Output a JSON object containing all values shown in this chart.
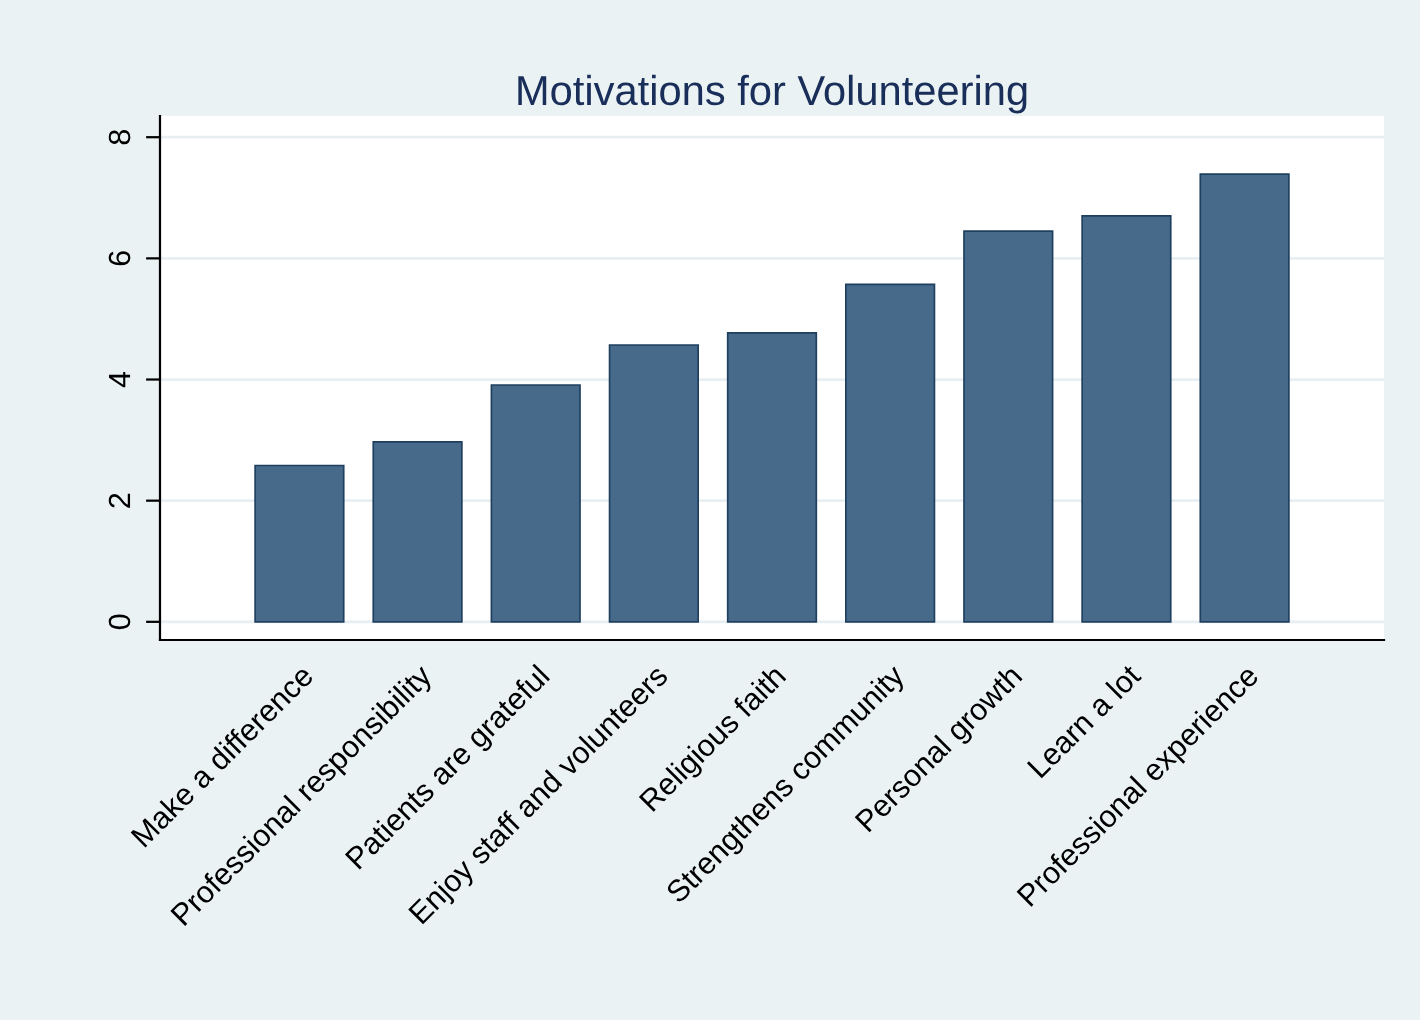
{
  "chart_data": {
    "type": "bar",
    "title": "Motivations for Volunteering",
    "categories": [
      "Make a difference",
      "Professional responsibility",
      "Patients are grateful",
      "Enjoy staff and volunteers",
      "Religious faith",
      "Strengthens community",
      "Personal growth",
      "Learn a lot",
      "Professional experience"
    ],
    "values": [
      2.58,
      2.97,
      3.91,
      4.57,
      4.77,
      5.57,
      6.45,
      6.7,
      7.39
    ],
    "color": "#476a8a",
    "ylim": [
      -0.3,
      8.35
    ],
    "yticks": [
      0,
      2,
      4,
      6,
      8
    ],
    "grid": "y",
    "legend": false
  }
}
